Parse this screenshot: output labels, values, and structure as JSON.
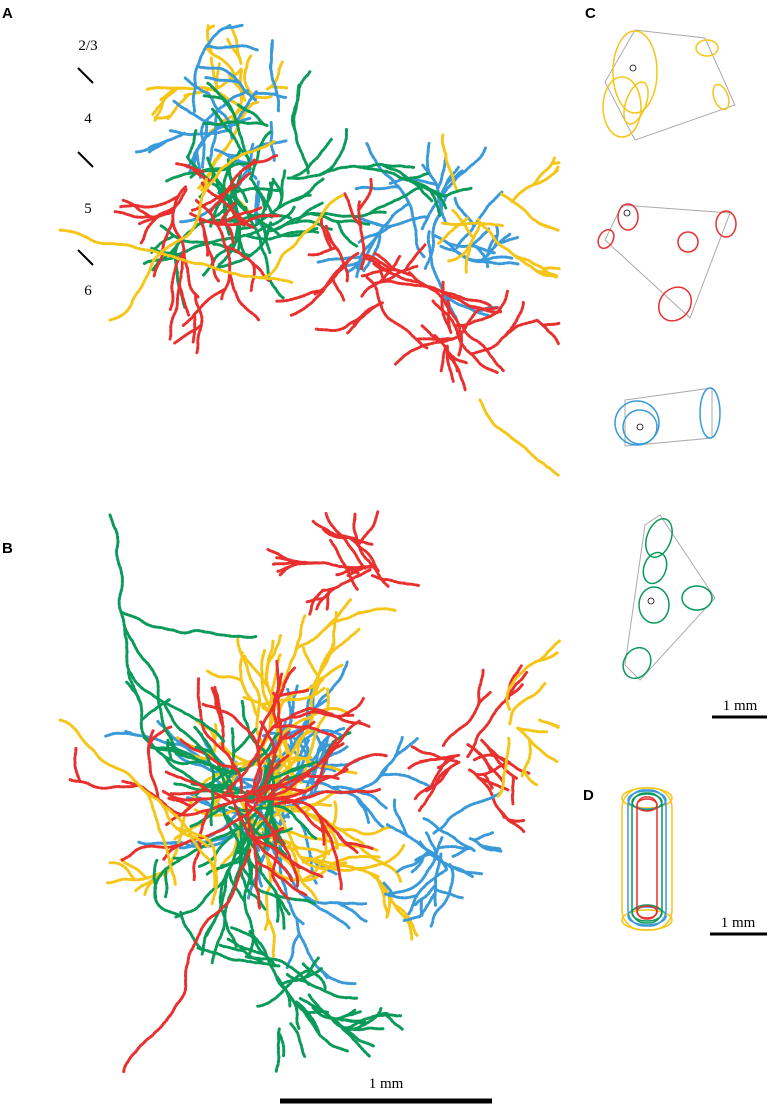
{
  "panels": [
    {
      "label": "A",
      "layers": [
        "2/3",
        "4",
        "5",
        "6"
      ]
    },
    {
      "label": "B",
      "scale_bar": "1 mm"
    },
    {
      "label": "C",
      "scale_bar": "1 mm"
    },
    {
      "label": "D",
      "scale_bar": "1 mm"
    }
  ]
}
